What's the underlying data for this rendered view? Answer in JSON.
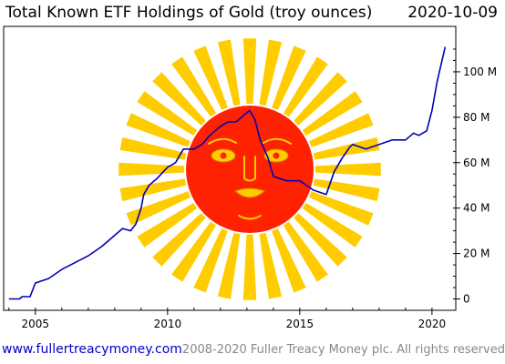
{
  "header": {
    "title": "Total Known ETF Holdings of Gold (troy ounces)",
    "date": "2020-10-09"
  },
  "footer": {
    "url": "www.fullertreacymoney.com",
    "copyright": "2008-2020 Fuller Treacy Money plc. All rights reserved"
  },
  "colors": {
    "line": "#0000b3",
    "sun_disc": "#ff2200",
    "sun_rays": "#ffcc00",
    "face": "#ffcc00"
  },
  "decoration": {
    "icon": "smiling-sun-face-icon"
  },
  "chart_data": {
    "type": "line",
    "title": "Total Known ETF Holdings of Gold (troy ounces)",
    "xlabel": "",
    "ylabel": "",
    "xlim": [
      2003.8,
      2020.9
    ],
    "ylim": [
      -5,
      120
    ],
    "y_axis_side": "right",
    "x_ticks": [
      {
        "value": 2005,
        "label": "2005"
      },
      {
        "value": 2010,
        "label": "2010"
      },
      {
        "value": 2015,
        "label": "2015"
      },
      {
        "value": 2020,
        "label": "2020"
      }
    ],
    "y_ticks": [
      {
        "value": 0,
        "label": "0"
      },
      {
        "value": 20,
        "label": "20 M"
      },
      {
        "value": 40,
        "label": "40 M"
      },
      {
        "value": 60,
        "label": "60 M"
      },
      {
        "value": 80,
        "label": "80 M"
      },
      {
        "value": 100,
        "label": "100 M"
      }
    ],
    "grid": false,
    "series": [
      {
        "values_unit": "million troy ounces",
        "x": [
          2004.0,
          2004.4,
          2004.5,
          2004.8,
          2005.0,
          2005.5,
          2006.0,
          2006.5,
          2007.0,
          2007.5,
          2008.0,
          2008.3,
          2008.6,
          2008.8,
          2009.0,
          2009.1,
          2009.3,
          2009.6,
          2010.0,
          2010.3,
          2010.6,
          2011.0,
          2011.3,
          2011.6,
          2012.0,
          2012.3,
          2012.6,
          2012.9,
          2013.1,
          2013.3,
          2013.5,
          2013.8,
          2014.0,
          2014.5,
          2015.0,
          2015.5,
          2016.0,
          2016.3,
          2016.6,
          2016.9,
          2017.0,
          2017.5,
          2018.0,
          2018.5,
          2019.0,
          2019.3,
          2019.5,
          2019.8,
          2020.0,
          2020.2,
          2020.4,
          2020.5
        ],
        "values": [
          0,
          0,
          1,
          1,
          7,
          9,
          13,
          16,
          19,
          23,
          28,
          31,
          30,
          33,
          40,
          46,
          50,
          53,
          58,
          60,
          66,
          66,
          68,
          72,
          76,
          78,
          78,
          81,
          83,
          79,
          70,
          62,
          54,
          52,
          52,
          48,
          46,
          56,
          62,
          67,
          68,
          66,
          68,
          70,
          70,
          73,
          72,
          74,
          83,
          96,
          106,
          111
        ]
      }
    ]
  }
}
